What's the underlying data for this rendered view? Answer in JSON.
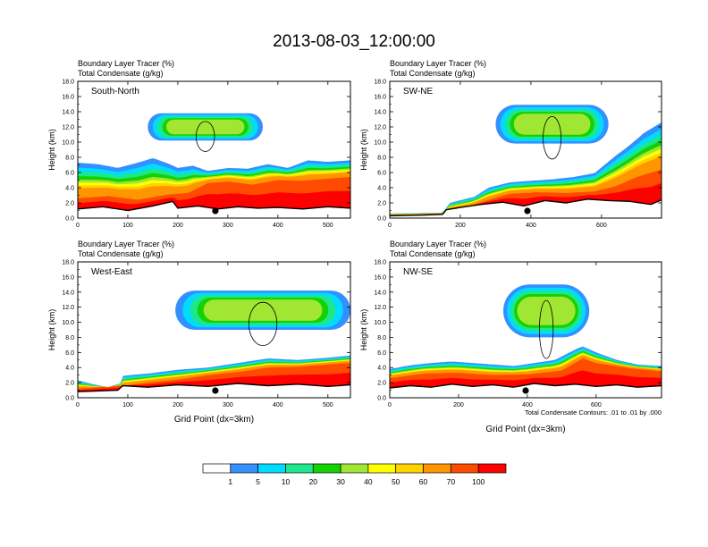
{
  "title": "2013-08-03_12:00:00",
  "chart_data": [
    {
      "type": "area",
      "panel_label": "South-North",
      "field_titles": [
        "Boundary Layer Tracer    (%)",
        "Total Condensate    (g/kg)"
      ],
      "xlabel": "",
      "ylabel": "Height (km)",
      "xlim": [
        0,
        545
      ],
      "ylim": [
        0,
        18
      ],
      "x_ticks": [
        "0",
        "100",
        "200",
        "300",
        "400",
        "500"
      ],
      "y_ticks": [
        "0.0",
        "2.0",
        "4.0",
        "6.0",
        "8.0",
        "10.0",
        "12.0",
        "14.0",
        "16.0",
        "18.0"
      ],
      "marker_x": 275,
      "terrain": {
        "x": [
          0,
          50,
          100,
          150,
          190,
          200,
          240,
          280,
          320,
          360,
          400,
          450,
          500,
          545
        ],
        "y": [
          1.2,
          1.5,
          1.0,
          1.6,
          2.2,
          1.3,
          1.6,
          1.2,
          1.5,
          1.3,
          1.4,
          1.2,
          1.5,
          1.3
        ]
      },
      "tracer_top": {
        "x": [
          0,
          40,
          80,
          120,
          150,
          180,
          200,
          230,
          260,
          300,
          340,
          380,
          420,
          460,
          500,
          545
        ],
        "y": [
          7.3,
          7.1,
          6.6,
          7.3,
          7.9,
          7.2,
          6.6,
          6.9,
          6.2,
          6.6,
          6.5,
          7.1,
          6.6,
          7.6,
          7.4,
          7.6
        ]
      },
      "core_top": {
        "x": [
          0,
          60,
          120,
          180,
          220,
          260,
          300,
          350,
          400,
          450,
          500,
          545
        ],
        "y": [
          2.6,
          2.9,
          2.4,
          3.1,
          3.3,
          4.6,
          4.8,
          4.4,
          5.0,
          4.9,
          5.2,
          5.4
        ]
      },
      "cloud_layer": {
        "x_range": [
          140,
          370
        ],
        "bottom": 10.2,
        "top": 13.8
      }
    },
    {
      "type": "area",
      "panel_label": "SW-NE",
      "field_titles": [
        "Boundary Layer Tracer    (%)",
        "Total Condensate    (g/kg)"
      ],
      "xlabel": "",
      "ylabel": "Height (km)",
      "xlim": [
        0,
        770
      ],
      "ylim": [
        0,
        18
      ],
      "x_ticks": [
        "0",
        "200",
        "400",
        "600"
      ],
      "y_ticks": [
        "0.0",
        "2.0",
        "4.0",
        "6.0",
        "8.0",
        "10.0",
        "12.0",
        "14.0",
        "16.0",
        "18.0"
      ],
      "marker_x": 390,
      "terrain": {
        "x": [
          0,
          100,
          150,
          160,
          200,
          260,
          320,
          380,
          440,
          500,
          560,
          620,
          680,
          740,
          770
        ],
        "y": [
          0.3,
          0.4,
          0.5,
          1.1,
          1.4,
          1.8,
          2.1,
          1.6,
          2.3,
          2.0,
          2.5,
          2.3,
          2.2,
          1.8,
          2.4
        ]
      },
      "tracer_top": {
        "x": [
          0,
          150,
          170,
          240,
          280,
          340,
          400,
          460,
          520,
          580,
          640,
          680,
          720,
          770
        ],
        "y": [
          0.6,
          0.7,
          2.0,
          2.8,
          4.0,
          4.7,
          4.9,
          5.1,
          5.4,
          5.9,
          8.2,
          9.6,
          11.2,
          12.6
        ]
      },
      "core_top": {
        "x": [
          0,
          160,
          260,
          340,
          420,
          500,
          580,
          640,
          700,
          770
        ],
        "y": [
          0.4,
          0.6,
          2.1,
          3.2,
          3.4,
          3.3,
          3.5,
          4.2,
          5.4,
          6.4
        ]
      },
      "cloud_layer": {
        "x_range": [
          300,
          620
        ],
        "bottom": 9.8,
        "top": 14.9
      }
    },
    {
      "type": "area",
      "panel_label": "West-East",
      "field_titles": [
        "Boundary Layer Tracer    (%)",
        "Total Condensate    (g/kg)"
      ],
      "xlabel": "Grid Point  (dx=3km)",
      "ylabel": "Height (km)",
      "xlim": [
        0,
        545
      ],
      "ylim": [
        0,
        18
      ],
      "x_ticks": [
        "0",
        "100",
        "200",
        "300",
        "400",
        "500"
      ],
      "y_ticks": [
        "0.0",
        "2.0",
        "4.0",
        "6.0",
        "8.0",
        "10.0",
        "12.0",
        "14.0",
        "16.0",
        "18.0"
      ],
      "marker_x": 275,
      "terrain": {
        "x": [
          0,
          40,
          80,
          90,
          140,
          200,
          260,
          320,
          380,
          440,
          500,
          545
        ],
        "y": [
          0.8,
          0.9,
          1.0,
          1.6,
          1.4,
          1.7,
          1.5,
          1.9,
          1.6,
          1.8,
          1.5,
          1.7
        ]
      },
      "tracer_top": {
        "x": [
          0,
          30,
          60,
          85,
          90,
          140,
          200,
          260,
          320,
          380,
          440,
          500,
          545
        ],
        "y": [
          2.3,
          1.8,
          1.4,
          1.9,
          2.9,
          3.2,
          3.7,
          4.0,
          4.6,
          5.2,
          5.0,
          5.3,
          5.6
        ]
      },
      "core_top": {
        "x": [
          0,
          90,
          140,
          200,
          260,
          320,
          380,
          440,
          500,
          545
        ],
        "y": [
          1.2,
          1.6,
          2.0,
          2.4,
          3.0,
          3.4,
          4.0,
          4.1,
          4.4,
          4.6
        ]
      },
      "cloud_layer": {
        "x_range": [
          195,
          545
        ],
        "bottom": 9.0,
        "top": 14.2
      }
    },
    {
      "type": "area",
      "panel_label": "NW-SE",
      "field_titles": [
        "Boundary Layer Tracer    (%)",
        "Total Condensate    (g/kg)"
      ],
      "xlabel": "Grid Point  (dx=3km)",
      "ylabel": "Height (km)",
      "xlim": [
        0,
        790
      ],
      "ylim": [
        0,
        18
      ],
      "x_ticks": [
        "0",
        "200",
        "400",
        "600"
      ],
      "y_ticks": [
        "0.0",
        "2.0",
        "4.0",
        "6.0",
        "8.0",
        "10.0",
        "12.0",
        "14.0",
        "16.0",
        "18.0"
      ],
      "marker_x": 395,
      "terrain": {
        "x": [
          0,
          60,
          120,
          180,
          240,
          300,
          360,
          420,
          480,
          540,
          600,
          660,
          720,
          790
        ],
        "y": [
          1.3,
          1.6,
          1.4,
          1.8,
          1.5,
          1.7,
          1.4,
          1.9,
          1.6,
          1.8,
          1.5,
          1.7,
          1.4,
          1.6
        ]
      },
      "tracer_top": {
        "x": [
          0,
          60,
          120,
          180,
          240,
          300,
          360,
          420,
          480,
          540,
          560,
          600,
          660,
          720,
          790
        ],
        "y": [
          3.8,
          4.3,
          4.6,
          4.8,
          4.6,
          4.4,
          4.2,
          4.6,
          5.0,
          6.4,
          6.8,
          6.0,
          5.0,
          4.4,
          4.2
        ]
      },
      "core_top": {
        "x": [
          0,
          100,
          200,
          300,
          400,
          500,
          560,
          600,
          700,
          790
        ],
        "y": [
          2.6,
          3.2,
          3.3,
          3.0,
          3.1,
          3.6,
          5.2,
          4.6,
          3.9,
          3.5
        ]
      },
      "cloud_layer": {
        "x_range": [
          330,
          580
        ],
        "bottom": 8.0,
        "top": 15.0
      }
    }
  ],
  "annotation": "Total Condensate Contours: .01 to .01 by .000",
  "colorbar": {
    "labels": [
      "1",
      "5",
      "10",
      "20",
      "30",
      "40",
      "50",
      "60",
      "70",
      "100"
    ],
    "colors": [
      "#ffffff",
      "#3291ff",
      "#00dcff",
      "#1ee68c",
      "#14d200",
      "#a0e632",
      "#ffff00",
      "#ffd200",
      "#ff9600",
      "#ff4b00",
      "#ff0000"
    ]
  }
}
